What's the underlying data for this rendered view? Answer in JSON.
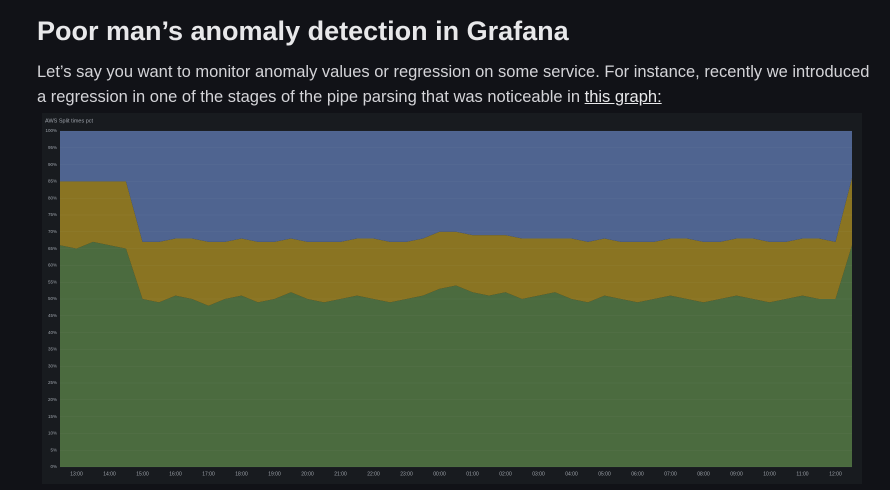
{
  "title": "Poor man’s anomaly detection in Grafana",
  "paragraph": {
    "text": "Let’s say you want to monitor anomaly values or regression on some service. For instance, recently we introduced a regression in one of the stages of the pipe parsing that was noticeable in",
    "link": "this graph:"
  },
  "chart_data": {
    "type": "area",
    "stacked": true,
    "title": "AWS Split times pct",
    "categories": [
      null,
      "13:00",
      null,
      "14:00",
      null,
      "15:00",
      null,
      "16:00",
      null,
      "17:00",
      null,
      "18:00",
      null,
      "19:00",
      null,
      "20:00",
      null,
      "21:00",
      null,
      "22:00",
      null,
      "23:00",
      null,
      "00:00",
      null,
      "01:00",
      null,
      "02:00",
      null,
      "03:00",
      null,
      "04:00",
      null,
      "05:00",
      null,
      "06:00",
      null,
      "07:00",
      null,
      "08:00",
      null,
      "09:00",
      null,
      "10:00",
      null,
      "11:00",
      null,
      "12:00",
      null
    ],
    "series": [
      {
        "color": "#4b6b3f",
        "values": [
          66,
          65,
          67,
          66,
          65,
          50,
          49,
          51,
          50,
          48,
          50,
          51,
          49,
          50,
          52,
          50,
          49,
          50,
          51,
          50,
          49,
          50,
          51,
          53,
          54,
          52,
          51,
          52,
          50,
          51,
          52,
          50,
          49,
          51,
          50,
          49,
          50,
          51,
          50,
          49,
          50,
          51,
          50,
          49,
          50,
          51,
          50,
          50,
          66
        ]
      },
      {
        "color": "#8a7422",
        "values": [
          19,
          20,
          18,
          19,
          20,
          17,
          18,
          17,
          18,
          19,
          17,
          17,
          18,
          17,
          16,
          17,
          18,
          17,
          17,
          18,
          18,
          17,
          17,
          17,
          16,
          17,
          18,
          17,
          18,
          17,
          16,
          18,
          18,
          17,
          17,
          18,
          17,
          17,
          18,
          18,
          17,
          17,
          18,
          18,
          17,
          17,
          18,
          17,
          20
        ]
      },
      {
        "color": "#4f6490",
        "values": [
          15,
          15,
          15,
          15,
          15,
          33,
          33,
          32,
          32,
          33,
          33,
          32,
          33,
          33,
          32,
          33,
          33,
          33,
          32,
          32,
          33,
          33,
          32,
          30,
          30,
          31,
          31,
          31,
          32,
          32,
          32,
          32,
          33,
          32,
          33,
          33,
          33,
          32,
          32,
          33,
          33,
          32,
          32,
          33,
          33,
          32,
          32,
          33,
          14
        ]
      }
    ],
    "ylim": [
      0,
      100
    ],
    "yticks": [
      {
        "value": 0,
        "label": "0%"
      },
      {
        "value": 5,
        "label": "5%"
      },
      {
        "value": 10,
        "label": "10%"
      },
      {
        "value": 15,
        "label": "15%"
      },
      {
        "value": 20,
        "label": "20%"
      },
      {
        "value": 25,
        "label": "25%"
      },
      {
        "value": 30,
        "label": "30%"
      },
      {
        "value": 35,
        "label": "35%"
      },
      {
        "value": 40,
        "label": "40%"
      },
      {
        "value": 45,
        "label": "45%"
      },
      {
        "value": 50,
        "label": "50%"
      },
      {
        "value": 55,
        "label": "55%"
      },
      {
        "value": 60,
        "label": "60%"
      },
      {
        "value": 65,
        "label": "65%"
      },
      {
        "value": 70,
        "label": "70%"
      },
      {
        "value": 75,
        "label": "75%"
      },
      {
        "value": 80,
        "label": "80%"
      },
      {
        "value": 85,
        "label": "85%"
      },
      {
        "value": 90,
        "label": "90%"
      },
      {
        "value": 95,
        "label": "95%"
      },
      {
        "value": 100,
        "label": "100%"
      }
    ],
    "grid": true
  }
}
